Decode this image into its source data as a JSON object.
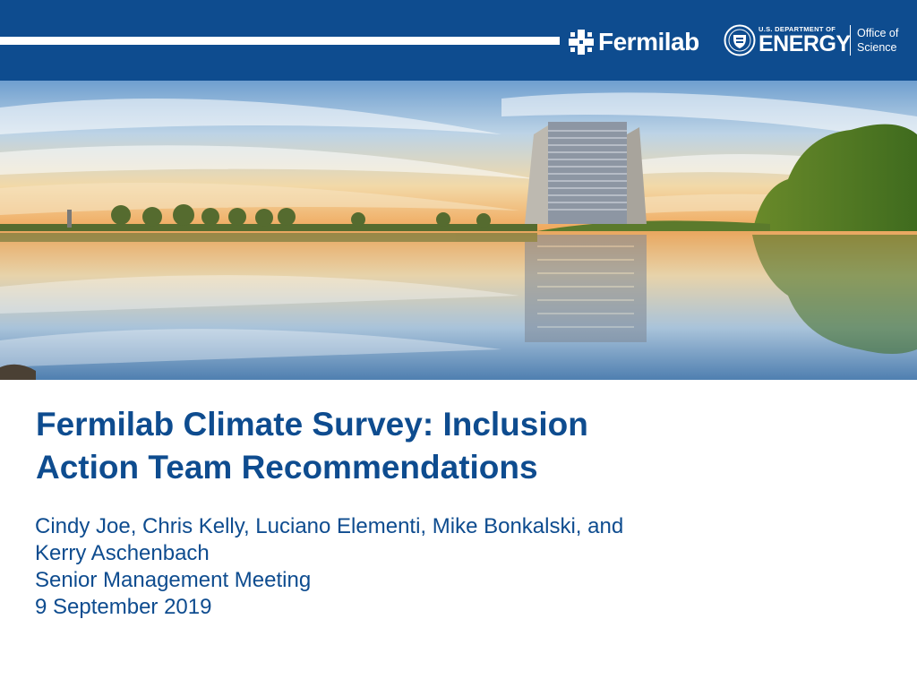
{
  "header": {
    "lab_name": "Fermilab",
    "doe_department": "U.S. DEPARTMENT OF",
    "doe_name": "ENERGY",
    "office_line1": "Office of",
    "office_line2": "Science",
    "band_color": "#0e4c8f"
  },
  "slide": {
    "title_line1": "Fermilab Climate Survey: Inclusion",
    "title_line2": "Action Team Recommendations",
    "authors_line1": "Cindy Joe, Chris Kelly, Luciano Elementi, Mike Bonkalski, and",
    "authors_line2": "Kerry Aschenbach",
    "meeting": "Senior Management Meeting",
    "date": "9 September 2019",
    "text_color": "#0e4c8f"
  },
  "photo": {
    "subject": "fermilab-wilson-hall-reflection-photo"
  },
  "icons": {
    "fermilab": "fermilab-logo-icon",
    "doe": "doe-seal-icon"
  }
}
